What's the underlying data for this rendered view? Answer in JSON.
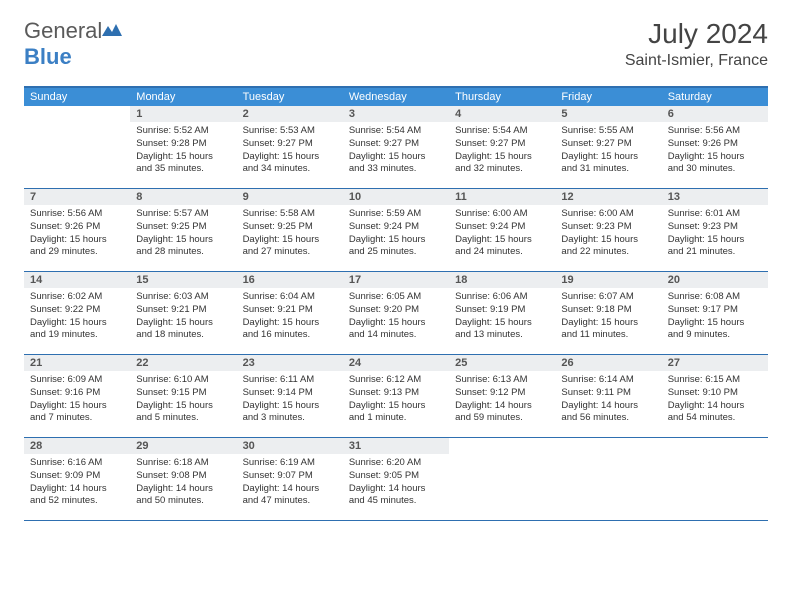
{
  "logo": {
    "text_general": "General",
    "text_blue": "Blue"
  },
  "title": "July 2024",
  "location": "Saint-Ismier, France",
  "colors": {
    "header_bar": "#3b8ed6",
    "header_border": "#2e6fb0",
    "daynum_bg": "#eceef0",
    "logo_blue": "#3b7fc4",
    "text": "#333333"
  },
  "weekdays": [
    "Sunday",
    "Monday",
    "Tuesday",
    "Wednesday",
    "Thursday",
    "Friday",
    "Saturday"
  ],
  "weeks": [
    [
      {
        "n": "",
        "empty": true
      },
      {
        "n": "1",
        "sunrise": "Sunrise: 5:52 AM",
        "sunset": "Sunset: 9:28 PM",
        "daylight": "Daylight: 15 hours and 35 minutes."
      },
      {
        "n": "2",
        "sunrise": "Sunrise: 5:53 AM",
        "sunset": "Sunset: 9:27 PM",
        "daylight": "Daylight: 15 hours and 34 minutes."
      },
      {
        "n": "3",
        "sunrise": "Sunrise: 5:54 AM",
        "sunset": "Sunset: 9:27 PM",
        "daylight": "Daylight: 15 hours and 33 minutes."
      },
      {
        "n": "4",
        "sunrise": "Sunrise: 5:54 AM",
        "sunset": "Sunset: 9:27 PM",
        "daylight": "Daylight: 15 hours and 32 minutes."
      },
      {
        "n": "5",
        "sunrise": "Sunrise: 5:55 AM",
        "sunset": "Sunset: 9:27 PM",
        "daylight": "Daylight: 15 hours and 31 minutes."
      },
      {
        "n": "6",
        "sunrise": "Sunrise: 5:56 AM",
        "sunset": "Sunset: 9:26 PM",
        "daylight": "Daylight: 15 hours and 30 minutes."
      }
    ],
    [
      {
        "n": "7",
        "sunrise": "Sunrise: 5:56 AM",
        "sunset": "Sunset: 9:26 PM",
        "daylight": "Daylight: 15 hours and 29 minutes."
      },
      {
        "n": "8",
        "sunrise": "Sunrise: 5:57 AM",
        "sunset": "Sunset: 9:25 PM",
        "daylight": "Daylight: 15 hours and 28 minutes."
      },
      {
        "n": "9",
        "sunrise": "Sunrise: 5:58 AM",
        "sunset": "Sunset: 9:25 PM",
        "daylight": "Daylight: 15 hours and 27 minutes."
      },
      {
        "n": "10",
        "sunrise": "Sunrise: 5:59 AM",
        "sunset": "Sunset: 9:24 PM",
        "daylight": "Daylight: 15 hours and 25 minutes."
      },
      {
        "n": "11",
        "sunrise": "Sunrise: 6:00 AM",
        "sunset": "Sunset: 9:24 PM",
        "daylight": "Daylight: 15 hours and 24 minutes."
      },
      {
        "n": "12",
        "sunrise": "Sunrise: 6:00 AM",
        "sunset": "Sunset: 9:23 PM",
        "daylight": "Daylight: 15 hours and 22 minutes."
      },
      {
        "n": "13",
        "sunrise": "Sunrise: 6:01 AM",
        "sunset": "Sunset: 9:23 PM",
        "daylight": "Daylight: 15 hours and 21 minutes."
      }
    ],
    [
      {
        "n": "14",
        "sunrise": "Sunrise: 6:02 AM",
        "sunset": "Sunset: 9:22 PM",
        "daylight": "Daylight: 15 hours and 19 minutes."
      },
      {
        "n": "15",
        "sunrise": "Sunrise: 6:03 AM",
        "sunset": "Sunset: 9:21 PM",
        "daylight": "Daylight: 15 hours and 18 minutes."
      },
      {
        "n": "16",
        "sunrise": "Sunrise: 6:04 AM",
        "sunset": "Sunset: 9:21 PM",
        "daylight": "Daylight: 15 hours and 16 minutes."
      },
      {
        "n": "17",
        "sunrise": "Sunrise: 6:05 AM",
        "sunset": "Sunset: 9:20 PM",
        "daylight": "Daylight: 15 hours and 14 minutes."
      },
      {
        "n": "18",
        "sunrise": "Sunrise: 6:06 AM",
        "sunset": "Sunset: 9:19 PM",
        "daylight": "Daylight: 15 hours and 13 minutes."
      },
      {
        "n": "19",
        "sunrise": "Sunrise: 6:07 AM",
        "sunset": "Sunset: 9:18 PM",
        "daylight": "Daylight: 15 hours and 11 minutes."
      },
      {
        "n": "20",
        "sunrise": "Sunrise: 6:08 AM",
        "sunset": "Sunset: 9:17 PM",
        "daylight": "Daylight: 15 hours and 9 minutes."
      }
    ],
    [
      {
        "n": "21",
        "sunrise": "Sunrise: 6:09 AM",
        "sunset": "Sunset: 9:16 PM",
        "daylight": "Daylight: 15 hours and 7 minutes."
      },
      {
        "n": "22",
        "sunrise": "Sunrise: 6:10 AM",
        "sunset": "Sunset: 9:15 PM",
        "daylight": "Daylight: 15 hours and 5 minutes."
      },
      {
        "n": "23",
        "sunrise": "Sunrise: 6:11 AM",
        "sunset": "Sunset: 9:14 PM",
        "daylight": "Daylight: 15 hours and 3 minutes."
      },
      {
        "n": "24",
        "sunrise": "Sunrise: 6:12 AM",
        "sunset": "Sunset: 9:13 PM",
        "daylight": "Daylight: 15 hours and 1 minute."
      },
      {
        "n": "25",
        "sunrise": "Sunrise: 6:13 AM",
        "sunset": "Sunset: 9:12 PM",
        "daylight": "Daylight: 14 hours and 59 minutes."
      },
      {
        "n": "26",
        "sunrise": "Sunrise: 6:14 AM",
        "sunset": "Sunset: 9:11 PM",
        "daylight": "Daylight: 14 hours and 56 minutes."
      },
      {
        "n": "27",
        "sunrise": "Sunrise: 6:15 AM",
        "sunset": "Sunset: 9:10 PM",
        "daylight": "Daylight: 14 hours and 54 minutes."
      }
    ],
    [
      {
        "n": "28",
        "sunrise": "Sunrise: 6:16 AM",
        "sunset": "Sunset: 9:09 PM",
        "daylight": "Daylight: 14 hours and 52 minutes."
      },
      {
        "n": "29",
        "sunrise": "Sunrise: 6:18 AM",
        "sunset": "Sunset: 9:08 PM",
        "daylight": "Daylight: 14 hours and 50 minutes."
      },
      {
        "n": "30",
        "sunrise": "Sunrise: 6:19 AM",
        "sunset": "Sunset: 9:07 PM",
        "daylight": "Daylight: 14 hours and 47 minutes."
      },
      {
        "n": "31",
        "sunrise": "Sunrise: 6:20 AM",
        "sunset": "Sunset: 9:05 PM",
        "daylight": "Daylight: 14 hours and 45 minutes."
      },
      {
        "n": "",
        "empty": true
      },
      {
        "n": "",
        "empty": true
      },
      {
        "n": "",
        "empty": true
      }
    ]
  ]
}
